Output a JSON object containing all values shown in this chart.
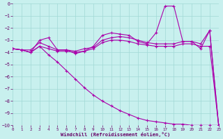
{
  "xlabel": "Windchill (Refroidissement éolien,°C)",
  "background_color": "#c8f0ee",
  "grid_color": "#a0d8d5",
  "line_color": "#aa00aa",
  "xlim": [
    0,
    23
  ],
  "ylim": [
    -10,
    0
  ],
  "xticks": [
    0,
    1,
    2,
    3,
    4,
    5,
    6,
    7,
    8,
    9,
    10,
    11,
    12,
    13,
    14,
    15,
    16,
    17,
    18,
    19,
    20,
    21,
    22,
    23
  ],
  "yticks": [
    0,
    -1,
    -2,
    -3,
    -4,
    -5,
    -6,
    -7,
    -8,
    -9,
    -10
  ],
  "lines": [
    {
      "x": [
        0,
        1,
        2,
        3,
        4,
        5,
        6,
        7,
        8,
        9,
        10,
        11,
        12,
        13,
        14,
        15,
        16,
        17,
        18,
        19,
        20,
        21,
        22,
        23
      ],
      "y": [
        -3.7,
        -3.8,
        -4.0,
        -3.0,
        -2.8,
        -3.8,
        -3.8,
        -4.1,
        -3.9,
        -3.5,
        -2.6,
        -2.4,
        -2.5,
        -2.6,
        -3.1,
        -3.3,
        -2.4,
        -0.2,
        -0.2,
        -3.1,
        -3.1,
        -3.7,
        -2.2,
        -10.0
      ]
    },
    {
      "x": [
        0,
        1,
        2,
        3,
        4,
        5,
        6,
        7,
        8,
        9,
        10,
        11,
        12,
        13,
        14,
        15,
        16,
        17,
        18,
        19,
        20,
        21,
        22,
        23
      ],
      "y": [
        -3.7,
        -3.8,
        -3.8,
        -3.2,
        -3.5,
        -3.8,
        -3.8,
        -3.9,
        -3.7,
        -3.6,
        -3.0,
        -2.8,
        -2.7,
        -2.8,
        -3.0,
        -3.2,
        -3.3,
        -3.3,
        -3.3,
        -3.1,
        -3.1,
        -3.3,
        -2.2,
        -10.0
      ]
    },
    {
      "x": [
        0,
        1,
        2,
        3,
        4,
        5,
        6,
        7,
        8,
        9,
        10,
        11,
        12,
        13,
        14,
        15,
        16,
        17,
        18,
        19,
        20,
        21,
        22,
        23
      ],
      "y": [
        -3.7,
        -3.8,
        -4.0,
        -3.5,
        -3.7,
        -3.9,
        -3.9,
        -4.0,
        -3.9,
        -3.7,
        -3.2,
        -3.0,
        -3.0,
        -3.1,
        -3.3,
        -3.4,
        -3.5,
        -3.5,
        -3.5,
        -3.3,
        -3.3,
        -3.5,
        -3.5,
        -10.0
      ]
    },
    {
      "x": [
        0,
        1,
        2,
        3,
        4,
        5,
        6,
        7,
        8,
        9,
        10,
        11,
        12,
        13,
        14,
        15,
        16,
        17,
        18,
        19,
        20,
        21,
        22,
        23
      ],
      "y": [
        -3.7,
        -3.8,
        -4.0,
        -3.5,
        -4.2,
        -4.8,
        -5.5,
        -6.2,
        -6.9,
        -7.5,
        -8.0,
        -8.4,
        -8.8,
        -9.1,
        -9.4,
        -9.6,
        -9.7,
        -9.8,
        -9.9,
        -9.9,
        -10.0,
        -10.0,
        -10.0,
        -10.0
      ]
    }
  ]
}
